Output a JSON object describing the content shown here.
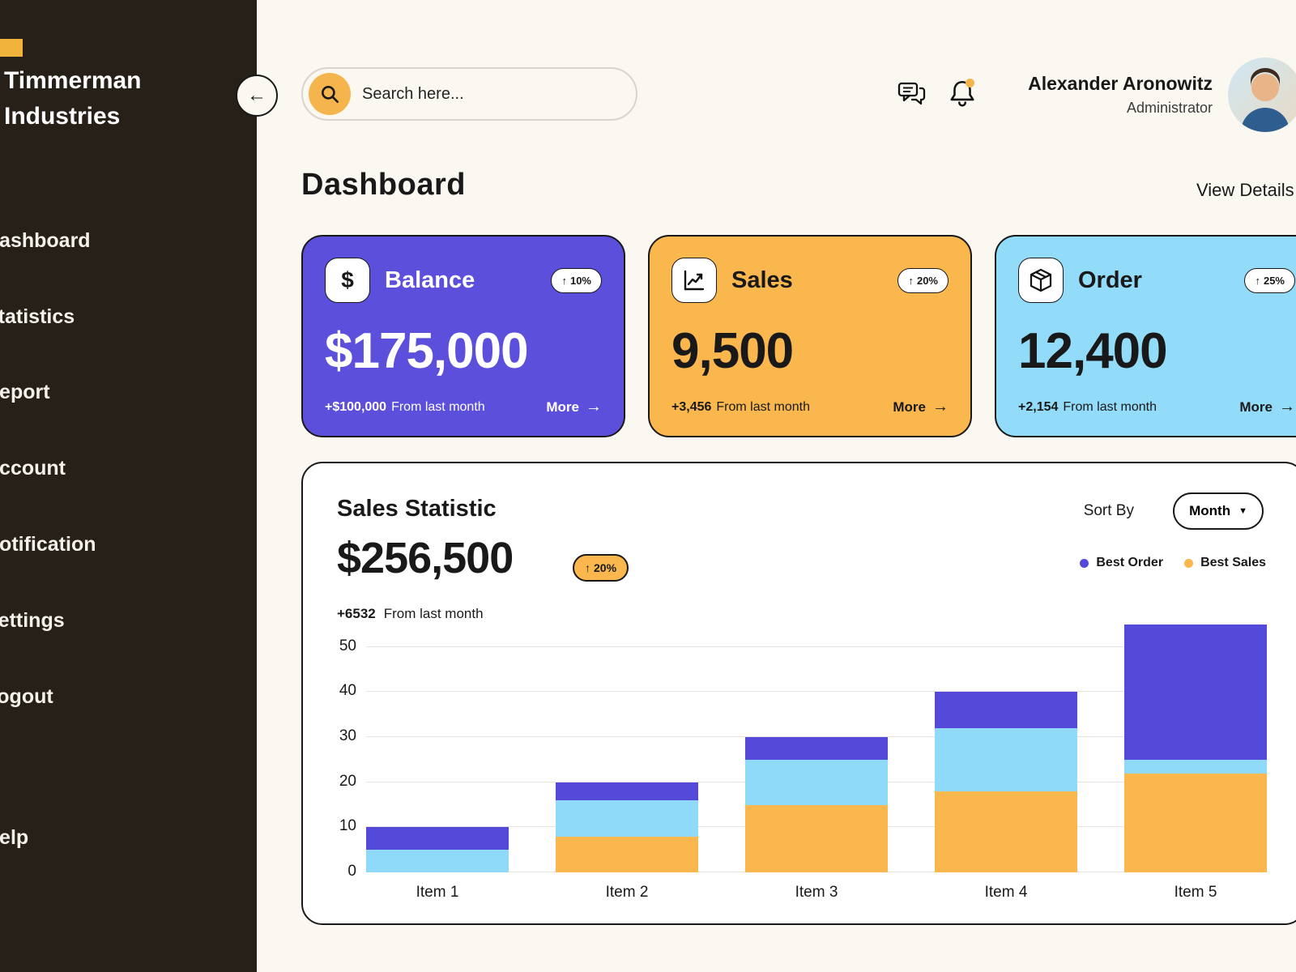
{
  "brand": {
    "name": "Timmerman Industries"
  },
  "sidebar": {
    "items": [
      {
        "label": "Dashboard"
      },
      {
        "label": "Statistics"
      },
      {
        "label": "Report"
      },
      {
        "label": "Account"
      },
      {
        "label": "Notification"
      },
      {
        "label": "Settings"
      },
      {
        "label": "Logout"
      },
      {
        "label": "Help"
      }
    ]
  },
  "topbar": {
    "search_placeholder": "Search here...",
    "user_name": "Alexander Aronowitz",
    "user_role": "Administrator"
  },
  "page": {
    "title": "Dashboard",
    "view_details_label": "View Details"
  },
  "cards": [
    {
      "title": "Balance",
      "badge_delta": "10%",
      "value": "$175,000",
      "delta": "+$100,000",
      "caption": "From last month",
      "more_label": "More",
      "bg": "#5B4FDB"
    },
    {
      "title": "Sales",
      "badge_delta": "20%",
      "value": "9,500",
      "delta": "+3,456",
      "caption": "From last month",
      "more_label": "More",
      "bg": "#F9B74E"
    },
    {
      "title": "Order",
      "badge_delta": "25%",
      "value": "12,400",
      "delta": "+2,154",
      "caption": "From last month",
      "more_label": "More",
      "bg": "#92DBF9"
    }
  ],
  "stats": {
    "title": "Sales Statistic",
    "sort_by_label": "Sort By",
    "sort_value": "Month",
    "value": "$256,500",
    "badge_delta": "20%",
    "delta": "+6532",
    "caption": "From last month",
    "legend": [
      {
        "label": "Best Order",
        "color": "#5549D9"
      },
      {
        "label": "Best Sales",
        "color": "#F9B74E"
      }
    ]
  },
  "chart_data": {
    "type": "bar",
    "stacked": true,
    "title": "Sales Statistic",
    "categories": [
      "Item 1",
      "Item 2",
      "Item 3",
      "Item 4",
      "Item 5"
    ],
    "series": [
      {
        "name": "Best Sales",
        "color": "#F9B74E",
        "values": [
          0,
          8,
          15,
          18,
          22
        ]
      },
      {
        "name": "(unlabeled)",
        "color": "#8FD9F9",
        "values": [
          5,
          8,
          10,
          14,
          3
        ]
      },
      {
        "name": "Best Order",
        "color": "#5549D9",
        "values": [
          5,
          4,
          5,
          8,
          30
        ]
      }
    ],
    "yticks": [
      0,
      10,
      20,
      30,
      40,
      50
    ],
    "ylim": [
      0,
      50
    ],
    "grid": "horizontal",
    "legend_position": "top-right"
  },
  "colors": {
    "page_bg": "#FBF8F1",
    "sidebar_bg": "#272019",
    "accent_yellow": "#F6B44C",
    "card_purple": "#5B4FDB",
    "card_yellow": "#F9B74E",
    "card_blue": "#92DBF9",
    "chart_purple": "#5549D9",
    "chart_blue": "#8FD9F9",
    "chart_yellow": "#F9B74E",
    "border_dark": "#191919",
    "gridline": "#E7E4DD"
  }
}
